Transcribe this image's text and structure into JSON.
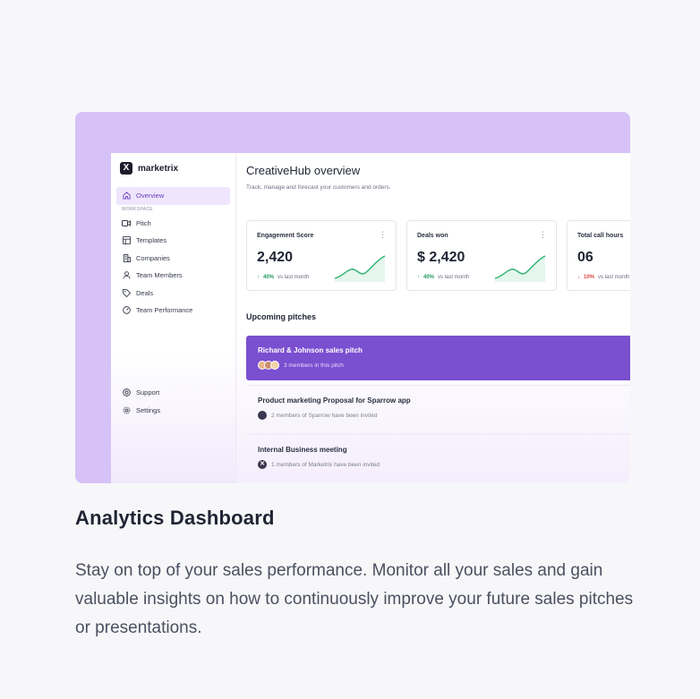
{
  "app": {
    "logo_text": "marketrix"
  },
  "sidebar": {
    "overview": "Overview",
    "section_label": "WORKSPACE",
    "items": [
      {
        "label": "Pitch",
        "icon": "video-icon"
      },
      {
        "label": "Templates",
        "icon": "template-icon"
      },
      {
        "label": "Companies",
        "icon": "building-icon"
      },
      {
        "label": "Team Members",
        "icon": "user-icon"
      },
      {
        "label": "Deals",
        "icon": "tag-icon"
      },
      {
        "label": "Team Performance",
        "icon": "gauge-icon"
      }
    ],
    "bottom": [
      {
        "label": "Support",
        "icon": "support-icon"
      },
      {
        "label": "Settings",
        "icon": "gear-icon"
      }
    ]
  },
  "main": {
    "title": "CreativeHub overview",
    "subtitle": "Track, manage and forecast your customers and orders.",
    "stats": [
      {
        "label": "Engagement Score",
        "value": "2,420",
        "trend_pct": "40%",
        "trend_dir": "up",
        "trend_text": "vs last month"
      },
      {
        "label": "Deals won",
        "value": "$ 2,420",
        "trend_pct": "40%",
        "trend_dir": "up",
        "trend_text": "vs last month"
      },
      {
        "label": "Total call hours",
        "value": "06",
        "trend_pct": "10%",
        "trend_dir": "down",
        "trend_text": "vs last month"
      }
    ],
    "pitches_title": "Upcoming pitches",
    "pitches": [
      {
        "title": "Richard & Johnson sales pitch",
        "members": "3 members in this pitch"
      },
      {
        "title": "Product marketing Proposal for Sparrow app",
        "members": "2 members of Sparrow have been invited"
      },
      {
        "title": "Internal Business meeting",
        "members": "1 members of Marketrix have been invited"
      }
    ]
  },
  "caption": {
    "heading": "Analytics Dashboard",
    "description": "Stay on top of your sales performance. Monitor all your sales and gain valuable insights on how to continuously improve your future sales pitches or presentations."
  },
  "colors": {
    "accent": "#7a4fd0",
    "card_bg": "#d7c2f7",
    "up": "#1f9d63",
    "down": "#d6453b"
  }
}
